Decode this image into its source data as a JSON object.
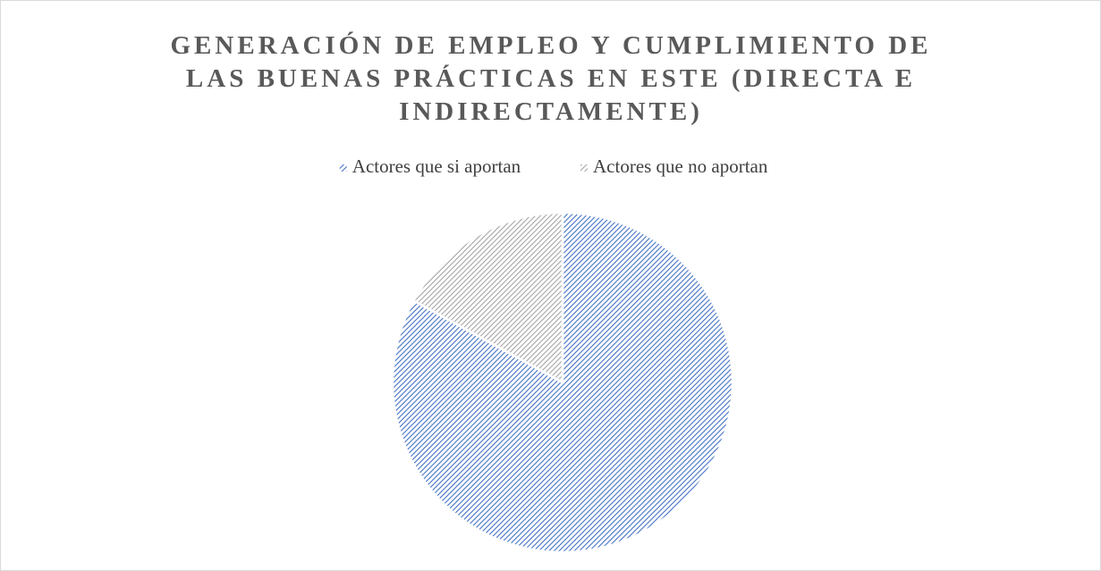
{
  "chart_data": {
    "type": "pie",
    "title": "GENERACIÓN DE EMPLEO Y CUMPLIMIENTO DE LAS BUENAS PRÁCTICAS EN ESTE (DIRECTA E INDIRECTAMENTE)",
    "categories": [
      "Actores que si aportan",
      "Actores que no aportan"
    ],
    "values": [
      83,
      17
    ],
    "colors": [
      "#4472c4",
      "#a5a5a5"
    ],
    "legend": "top"
  }
}
